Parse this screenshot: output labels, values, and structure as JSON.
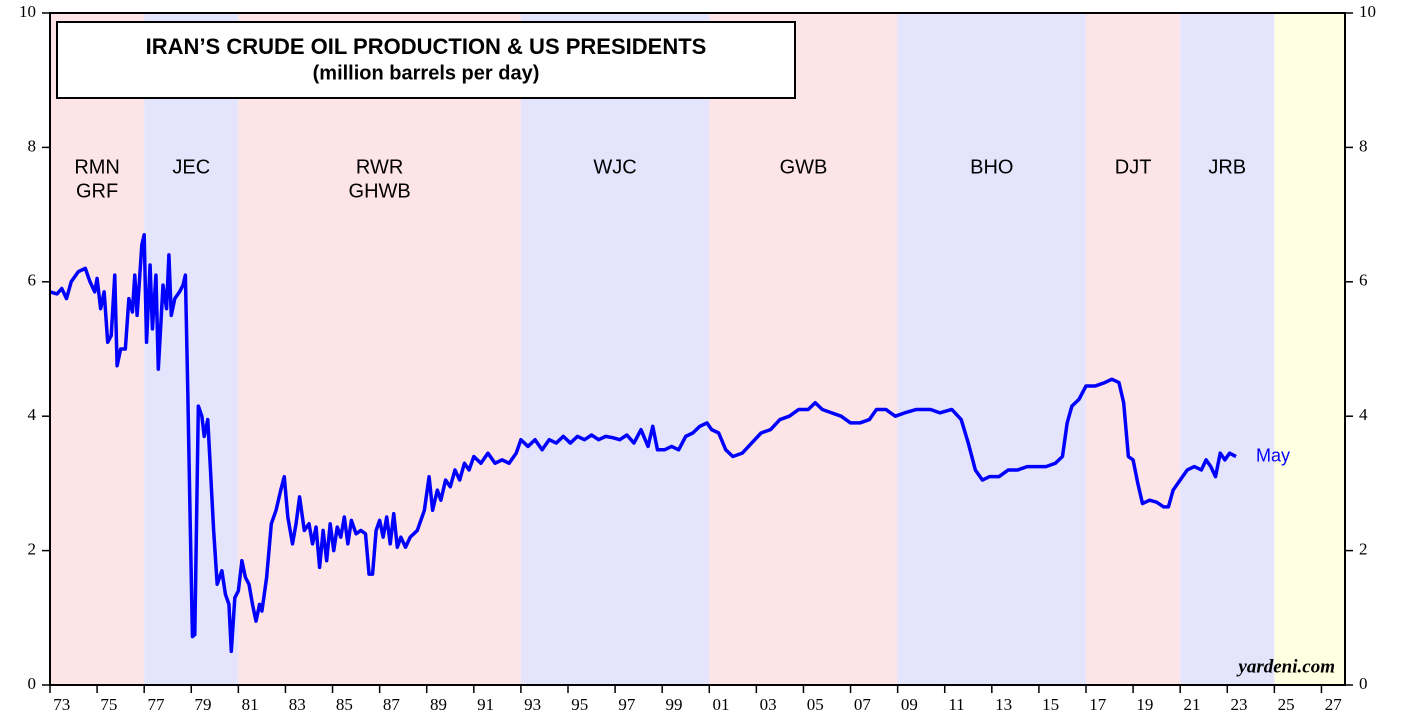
{
  "chart_data": {
    "type": "line",
    "title": "IRAN’S CRUDE OIL PRODUCTION & US PRESIDENTS",
    "subtitle": "(million barrels per day)",
    "source": "yardeni.com",
    "xlim": [
      1973,
      2028
    ],
    "xticks": [
      {
        "value": 1973,
        "label": "73"
      },
      {
        "value": 1975,
        "label": "75"
      },
      {
        "value": 1977,
        "label": "77"
      },
      {
        "value": 1979,
        "label": "79"
      },
      {
        "value": 1981,
        "label": "81"
      },
      {
        "value": 1983,
        "label": "83"
      },
      {
        "value": 1985,
        "label": "85"
      },
      {
        "value": 1987,
        "label": "87"
      },
      {
        "value": 1989,
        "label": "89"
      },
      {
        "value": 1991,
        "label": "91"
      },
      {
        "value": 1993,
        "label": "93"
      },
      {
        "value": 1995,
        "label": "95"
      },
      {
        "value": 1997,
        "label": "97"
      },
      {
        "value": 1999,
        "label": "99"
      },
      {
        "value": 2001,
        "label": "01"
      },
      {
        "value": 2003,
        "label": "03"
      },
      {
        "value": 2005,
        "label": "05"
      },
      {
        "value": 2007,
        "label": "07"
      },
      {
        "value": 2009,
        "label": "09"
      },
      {
        "value": 2011,
        "label": "11"
      },
      {
        "value": 2013,
        "label": "13"
      },
      {
        "value": 2015,
        "label": "15"
      },
      {
        "value": 2017,
        "label": "17"
      },
      {
        "value": 2019,
        "label": "19"
      },
      {
        "value": 2021,
        "label": "21"
      },
      {
        "value": 2023,
        "label": "23"
      },
      {
        "value": 2025,
        "label": "25"
      },
      {
        "value": 2027,
        "label": "27"
      }
    ],
    "ylim": [
      0,
      10
    ],
    "yticks": [
      0,
      2,
      4,
      6,
      8,
      10
    ],
    "bands": [
      {
        "start": 1973,
        "end": 1977,
        "label": [
          "RMN",
          "GRF"
        ],
        "color": "#fde4e6"
      },
      {
        "start": 1977,
        "end": 1981,
        "label": [
          "JEC"
        ],
        "color": "#e4e4fc"
      },
      {
        "start": 1981,
        "end": 1993,
        "label": [
          "RWR",
          "GHWB"
        ],
        "color": "#fde4e6"
      },
      {
        "start": 1993,
        "end": 2001,
        "label": [
          "WJC"
        ],
        "color": "#e4e4fc"
      },
      {
        "start": 2001,
        "end": 2009,
        "label": [
          "GWB"
        ],
        "color": "#fde4e6"
      },
      {
        "start": 2009,
        "end": 2017,
        "label": [
          "BHO"
        ],
        "color": "#e4e4fc"
      },
      {
        "start": 2017,
        "end": 2021,
        "label": [
          "DJT"
        ],
        "color": "#fde4e6"
      },
      {
        "start": 2021,
        "end": 2025,
        "label": [
          "JRB"
        ],
        "color": "#e4e4fc"
      }
    ],
    "forecast_band": {
      "start": 2025,
      "end": 2028,
      "color": "#ffffe2"
    },
    "end_label": "May",
    "series": [
      {
        "color": "#0000ff",
        "x": [
          1973.0,
          1973.3,
          1973.5,
          1973.7,
          1973.9,
          1974.2,
          1974.5,
          1974.7,
          1974.9,
          1975.0,
          1975.15,
          1975.3,
          1975.45,
          1975.6,
          1975.75,
          1975.85,
          1976.0,
          1976.2,
          1976.35,
          1976.5,
          1976.6,
          1976.7,
          1976.9,
          1977.0,
          1977.1,
          1977.25,
          1977.35,
          1977.5,
          1977.6,
          1977.8,
          1977.95,
          1978.05,
          1978.15,
          1978.3,
          1978.5,
          1978.65,
          1978.75,
          1978.85,
          1978.95,
          1979.05,
          1979.15,
          1979.3,
          1979.45,
          1979.55,
          1979.7,
          1979.8,
          1979.95,
          1980.1,
          1980.2,
          1980.3,
          1980.45,
          1980.6,
          1980.7,
          1980.85,
          1981.0,
          1981.15,
          1981.3,
          1981.45,
          1981.6,
          1981.75,
          1981.9,
          1982.0,
          1982.2,
          1982.4,
          1982.6,
          1982.8,
          1982.95,
          1983.1,
          1983.3,
          1983.45,
          1983.6,
          1983.8,
          1984.0,
          1984.15,
          1984.3,
          1984.45,
          1984.6,
          1984.75,
          1984.9,
          1985.05,
          1985.2,
          1985.35,
          1985.5,
          1985.65,
          1985.8,
          1986.0,
          1986.2,
          1986.4,
          1986.55,
          1986.7,
          1986.85,
          1987.0,
          1987.15,
          1987.3,
          1987.45,
          1987.6,
          1987.75,
          1987.9,
          1988.1,
          1988.3,
          1988.6,
          1988.9,
          1989.1,
          1989.25,
          1989.45,
          1989.6,
          1989.8,
          1990.0,
          1990.2,
          1990.4,
          1990.6,
          1990.8,
          1991.0,
          1991.3,
          1991.6,
          1991.9,
          1992.2,
          1992.5,
          1992.8,
          1993.0,
          1993.3,
          1993.6,
          1993.9,
          1994.2,
          1994.5,
          1994.8,
          1995.1,
          1995.4,
          1995.7,
          1996.0,
          1996.3,
          1996.6,
          1996.9,
          1997.2,
          1997.5,
          1997.8,
          1998.1,
          1998.4,
          1998.6,
          1998.8,
          1999.1,
          1999.4,
          1999.7,
          2000.0,
          2000.3,
          2000.6,
          2000.9,
          2001.1,
          2001.4,
          2001.7,
          2002.0,
          2002.4,
          2002.8,
          2003.2,
          2003.6,
          2004.0,
          2004.4,
          2004.8,
          2005.2,
          2005.5,
          2005.8,
          2006.2,
          2006.6,
          2007.0,
          2007.4,
          2007.8,
          2008.1,
          2008.5,
          2008.9,
          2009.3,
          2009.8,
          2010.4,
          2010.8,
          2011.3,
          2011.7,
          2012.0,
          2012.3,
          2012.6,
          2012.9,
          2013.3,
          2013.7,
          2014.1,
          2014.5,
          2014.9,
          2015.3,
          2015.7,
          2016.0,
          2016.2,
          2016.4,
          2016.7,
          2017.0,
          2017.4,
          2017.8,
          2018.1,
          2018.4,
          2018.6,
          2018.8,
          2019.0,
          2019.2,
          2019.4,
          2019.7,
          2020.0,
          2020.3,
          2020.5,
          2020.7,
          2021.0,
          2021.3,
          2021.6,
          2021.9,
          2022.1,
          2022.3,
          2022.5,
          2022.7,
          2022.9,
          2023.1,
          2023.37
        ],
        "values": [
          5.85,
          5.82,
          5.9,
          5.75,
          6.0,
          6.15,
          6.2,
          6.0,
          5.85,
          6.05,
          5.6,
          5.85,
          5.1,
          5.2,
          6.1,
          4.75,
          5.0,
          5.0,
          5.75,
          5.55,
          6.1,
          5.5,
          6.55,
          6.7,
          5.1,
          6.25,
          5.3,
          6.1,
          4.7,
          5.95,
          5.6,
          6.4,
          5.5,
          5.75,
          5.85,
          5.95,
          6.1,
          4.4,
          2.5,
          0.72,
          0.75,
          4.15,
          4.0,
          3.7,
          3.95,
          3.3,
          2.3,
          1.5,
          1.6,
          1.7,
          1.35,
          1.2,
          0.5,
          1.3,
          1.4,
          1.85,
          1.6,
          1.5,
          1.2,
          0.95,
          1.2,
          1.1,
          1.6,
          2.4,
          2.6,
          2.9,
          3.1,
          2.5,
          2.1,
          2.4,
          2.8,
          2.3,
          2.4,
          2.1,
          2.35,
          1.75,
          2.3,
          1.85,
          2.4,
          2.0,
          2.35,
          2.2,
          2.5,
          2.1,
          2.45,
          2.25,
          2.3,
          2.25,
          1.65,
          1.65,
          2.3,
          2.45,
          2.2,
          2.5,
          2.1,
          2.55,
          2.05,
          2.2,
          2.05,
          2.2,
          2.3,
          2.6,
          3.1,
          2.6,
          2.9,
          2.75,
          3.05,
          2.95,
          3.2,
          3.05,
          3.3,
          3.2,
          3.4,
          3.3,
          3.45,
          3.3,
          3.35,
          3.3,
          3.45,
          3.65,
          3.55,
          3.65,
          3.5,
          3.65,
          3.6,
          3.7,
          3.6,
          3.7,
          3.65,
          3.72,
          3.65,
          3.7,
          3.68,
          3.65,
          3.72,
          3.6,
          3.8,
          3.55,
          3.85,
          3.5,
          3.5,
          3.55,
          3.5,
          3.7,
          3.75,
          3.85,
          3.9,
          3.8,
          3.75,
          3.5,
          3.4,
          3.45,
          3.6,
          3.75,
          3.8,
          3.95,
          4.0,
          4.1,
          4.1,
          4.2,
          4.1,
          4.05,
          4.0,
          3.9,
          3.9,
          3.95,
          4.1,
          4.1,
          4.0,
          4.05,
          4.1,
          4.1,
          4.05,
          4.1,
          3.95,
          3.6,
          3.2,
          3.05,
          3.1,
          3.1,
          3.2,
          3.2,
          3.25,
          3.25,
          3.25,
          3.3,
          3.4,
          3.9,
          4.15,
          4.25,
          4.45,
          4.45,
          4.5,
          4.55,
          4.5,
          4.2,
          3.4,
          3.35,
          3.0,
          2.7,
          2.75,
          2.72,
          2.65,
          2.65,
          2.9,
          3.05,
          3.2,
          3.25,
          3.2,
          3.35,
          3.25,
          3.1,
          3.45,
          3.35,
          3.45,
          3.4
        ]
      }
    ]
  }
}
